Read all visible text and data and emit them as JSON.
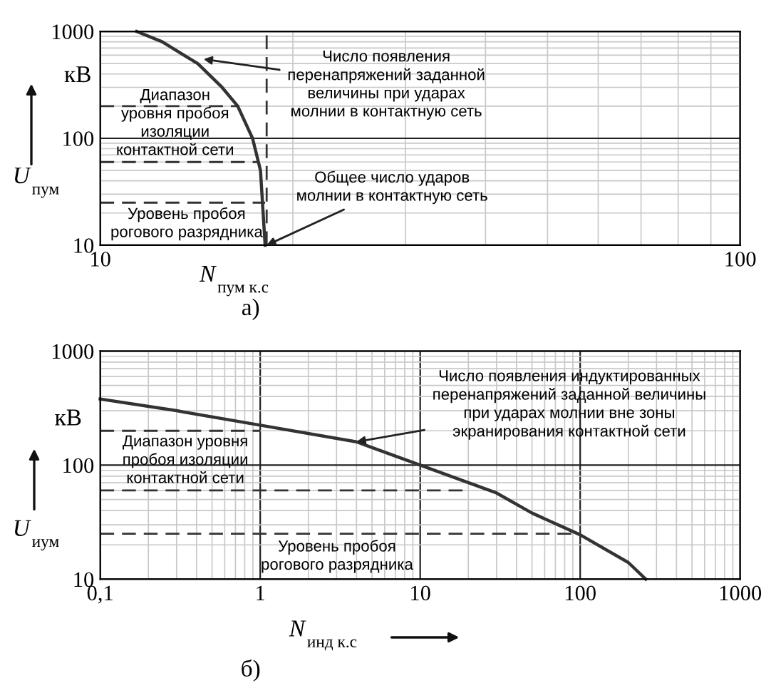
{
  "chart_data": [
    {
      "type": "line",
      "title": "а)",
      "xlabel": "N$_{пум к.с}$",
      "ylabel": "U$_{пум}$",
      "log": "xy",
      "grid": true,
      "line_style": "solid",
      "xlim": [
        10,
        100
      ],
      "xticks": [
        10,
        100
      ],
      "ylim": [
        10,
        1000
      ],
      "yticks": [
        10,
        100,
        1000
      ],
      "series": [
        {
          "color": "#333333",
          "x": [
            11.4,
            12.5,
            14.2,
            15.5,
            16.4,
            17.3,
            17.8,
            18.1
          ],
          "values": [
            1000,
            800,
            500,
            300,
            200,
            100,
            50,
            10
          ]
        },
        {
          "color": "#333333",
          "line_style": "dashed",
          "x": [
            10,
            16.5
          ],
          "values": [
            200,
            200
          ]
        },
        {
          "color": "#333333",
          "line_style": "dashed",
          "x": [
            10,
            17.7
          ],
          "values": [
            60,
            60
          ]
        },
        {
          "color": "#333333",
          "line_style": "dashed",
          "x": [
            10,
            18.1
          ],
          "values": [
            25,
            25
          ]
        }
      ],
      "ref_lines": [
        {
          "axis": "x",
          "value": 18.2,
          "color": "#333333",
          "line_style": "dashed"
        }
      ],
      "annotations": [
        {
          "text": "Число появления\nперенапряжений заданной\nвеличины при ударах\nмолнии в контактную сеть",
          "x": 14.5,
          "y": 550
        },
        {
          "text": "Общее число ударов\nмолнии в контактную сеть",
          "x": 18.2,
          "y": 10
        },
        "Диапазон\nуровня пробоя\nизоляции\nконтактной сети",
        "Уровень пробоя\nрогового разрядника",
        "кВ"
      ]
    },
    {
      "type": "line",
      "title": "б)",
      "xlabel": "N$_{инд к.с}$",
      "ylabel": "U$_{иум}$",
      "log": "xy",
      "grid": true,
      "line_style": "solid",
      "xlim": [
        0.1,
        1000
      ],
      "xticks": [
        {
          "value": 0.1,
          "label": "0,1"
        },
        1,
        10,
        100,
        1000
      ],
      "ylim": [
        10,
        1000
      ],
      "yticks": [
        10,
        100,
        1000
      ],
      "series": [
        {
          "color": "#333333",
          "x": [
            0.1,
            0.3,
            1,
            4,
            10,
            30,
            50,
            100,
            200,
            257
          ],
          "values": [
            380,
            300,
            224,
            160,
            100,
            57,
            38,
            24.5,
            14,
            10
          ]
        },
        {
          "color": "#333333",
          "line_style": "dashed",
          "x": [
            0.1,
            1
          ],
          "values": [
            200,
            200
          ]
        },
        {
          "color": "#333333",
          "line_style": "dashed",
          "x": [
            0.1,
            20
          ],
          "values": [
            60,
            60
          ]
        },
        {
          "color": "#333333",
          "line_style": "dashed",
          "x": [
            0.1,
            90
          ],
          "values": [
            25,
            25
          ]
        }
      ],
      "annotations": [
        {
          "text": "Число появления индуктированных\nперенапряжений заданной величины\nпри ударах молнии вне зоны\nэкранирования контактной сети",
          "x": 4,
          "y": 160
        },
        "Диапазон уровня\nпробоя изоляции\nконтактной сети",
        "Уровень пробоя\nрогового разрядника",
        "кВ"
      ]
    }
  ]
}
